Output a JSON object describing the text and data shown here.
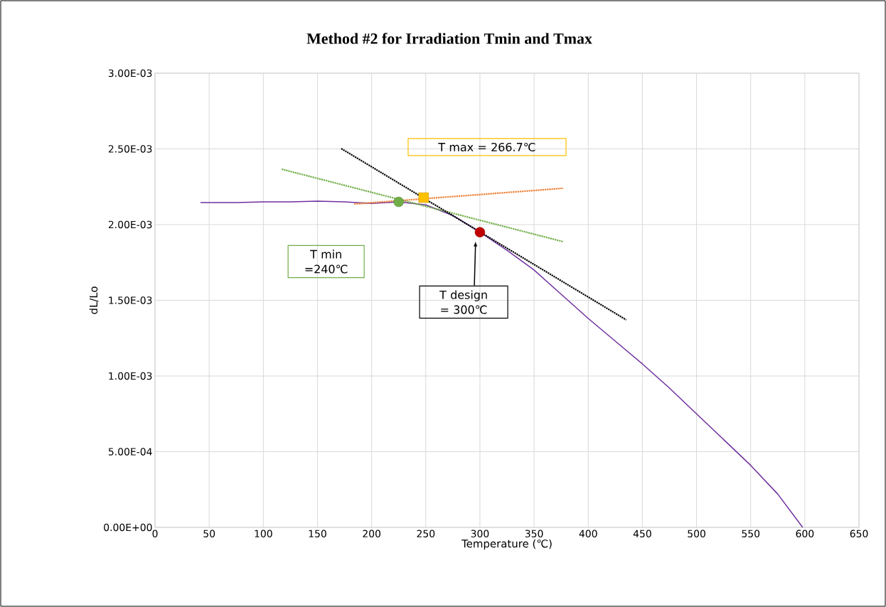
{
  "chart_data": {
    "type": "line",
    "title": "Method #2 for Irradiation Tmin and Tmax",
    "xlabel": "Temperature (℃)",
    "ylabel": "dL/Lo",
    "xlim": [
      0,
      650
    ],
    "xticks": [
      0,
      50,
      100,
      150,
      200,
      250,
      300,
      350,
      400,
      450,
      500,
      550,
      600,
      650
    ],
    "ylim": [
      0,
      0.003
    ],
    "yticks": [
      {
        "value": 0,
        "label": "0.00E+00"
      },
      {
        "value": 0.0005,
        "label": "5.00E-04"
      },
      {
        "value": 0.001,
        "label": "1.00E-03"
      },
      {
        "value": 0.0015,
        "label": "1.50E-03"
      },
      {
        "value": 0.002,
        "label": "2.00E-03"
      },
      {
        "value": 0.0025,
        "label": "2.50E-03"
      },
      {
        "value": 0.003,
        "label": "3.00E-03"
      }
    ],
    "grid": true,
    "series": [
      {
        "color": "#7030a0",
        "marker": "none",
        "line_style": "solid",
        "x": [
          42,
          75,
          100,
          125,
          150,
          175,
          200,
          225,
          250,
          275,
          300,
          325,
          350,
          375,
          400,
          425,
          450,
          475,
          500,
          525,
          550,
          575,
          598
        ],
        "values": [
          0.002145,
          0.002145,
          0.00215,
          0.00215,
          0.002155,
          0.00215,
          0.00214,
          0.00215,
          0.00213,
          0.00206,
          0.00195,
          0.00183,
          0.0017,
          0.00154,
          0.00138,
          0.00123,
          0.00108,
          0.00092,
          0.00075,
          0.00058,
          0.00041,
          0.00022,
          0
        ]
      },
      {
        "color": "#70ad47",
        "marker": "none",
        "line_style": "dotted",
        "x": [
          117,
          377
        ],
        "values": [
          0.002366,
          0.001887
        ]
      },
      {
        "color": "#ed7d31",
        "marker": "none",
        "line_style": "dotted",
        "x": [
          184,
          377
        ],
        "values": [
          0.002136,
          0.00224
        ]
      },
      {
        "color": "#000000",
        "marker": "none",
        "line_style": "dotted",
        "x": [
          172,
          435
        ],
        "values": [
          0.002502,
          0.001371
        ]
      },
      {
        "type": "scatter",
        "color": "#70ad47",
        "marker": "circle",
        "x": [
          225
        ],
        "values": [
          0.00215
        ]
      },
      {
        "type": "scatter",
        "color": "#ffc000",
        "marker": "square",
        "x": [
          248
        ],
        "values": [
          0.002178
        ]
      },
      {
        "type": "scatter",
        "color": "#c00000",
        "marker": "circle",
        "x": [
          300
        ],
        "values": [
          0.00195
        ]
      }
    ],
    "annotations": [
      "T max = 266.7℃",
      "T min =240℃",
      "T design = 300℃"
    ]
  }
}
